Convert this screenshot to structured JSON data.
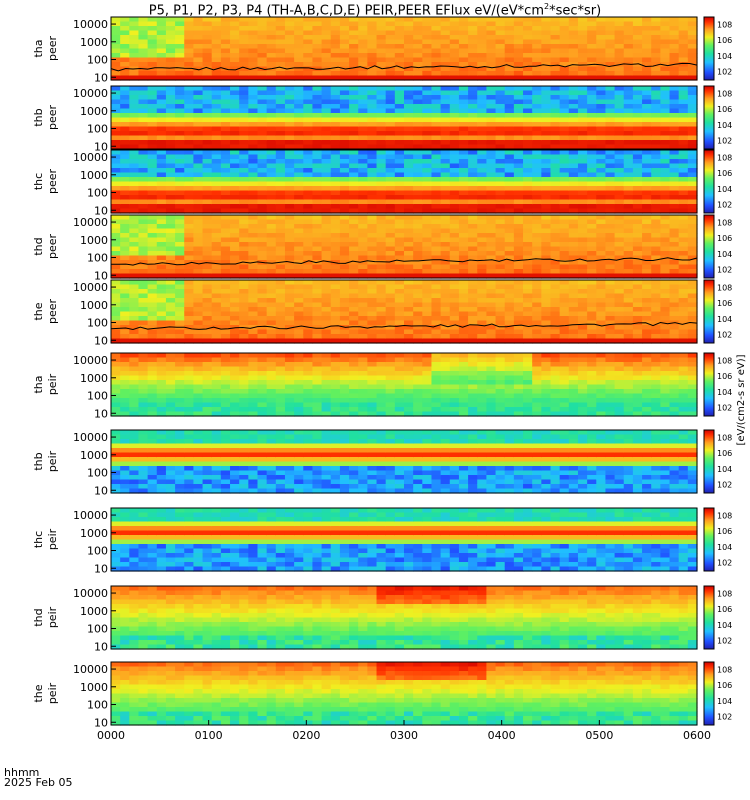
{
  "title": {
    "text_before": "P5, P1, P2, P3, P4 (TH-A,B,C,D,E) PEIR,PEER EFlux eV/(eV*cm",
    "sup": "2",
    "text_after": "*sec*sr)"
  },
  "time_axis": {
    "ticks": [
      "0000",
      "0100",
      "0200",
      "0300",
      "0400",
      "0500",
      "0600"
    ],
    "label_line1": "hhmm",
    "label_line2": "2025 Feb 05"
  },
  "colorbar_units": "[eV/(cm2-s sr eV)]",
  "chart_data": {
    "type": "heatmap",
    "x": {
      "label": "hhmm",
      "date": "2025 Feb 05",
      "range": [
        "0000",
        "0600"
      ]
    },
    "y": {
      "scale": "log",
      "ticks": [
        10,
        100,
        1000,
        10000
      ]
    },
    "colorbar": {
      "scale": "log",
      "ticks": [
        "10^2",
        "10^4",
        "10^6",
        "10^8"
      ],
      "colormap": "rainbow",
      "units": "eV/(cm2-s sr eV)"
    },
    "panels": [
      {
        "probe": "tha",
        "species": "peer",
        "profile": "electron_low",
        "line": true
      },
      {
        "probe": "thb",
        "species": "peer",
        "profile": "band_solarwind",
        "line": false
      },
      {
        "probe": "thc",
        "species": "peer",
        "profile": "band_solarwind",
        "line": false
      },
      {
        "probe": "thd",
        "species": "peer",
        "profile": "electron_low",
        "line": true
      },
      {
        "probe": "the",
        "species": "peer",
        "profile": "electron_low",
        "line": true
      },
      {
        "probe": "tha",
        "species": "peir",
        "profile": "ion_hot",
        "line": false
      },
      {
        "probe": "thb",
        "species": "peir",
        "profile": "ion_beam",
        "line": false
      },
      {
        "probe": "thc",
        "species": "peir",
        "profile": "ion_beam",
        "line": false
      },
      {
        "probe": "thd",
        "species": "peir",
        "profile": "ion_warm",
        "line": false
      },
      {
        "probe": "the",
        "species": "peir",
        "profile": "ion_warm",
        "line": false
      }
    ]
  }
}
